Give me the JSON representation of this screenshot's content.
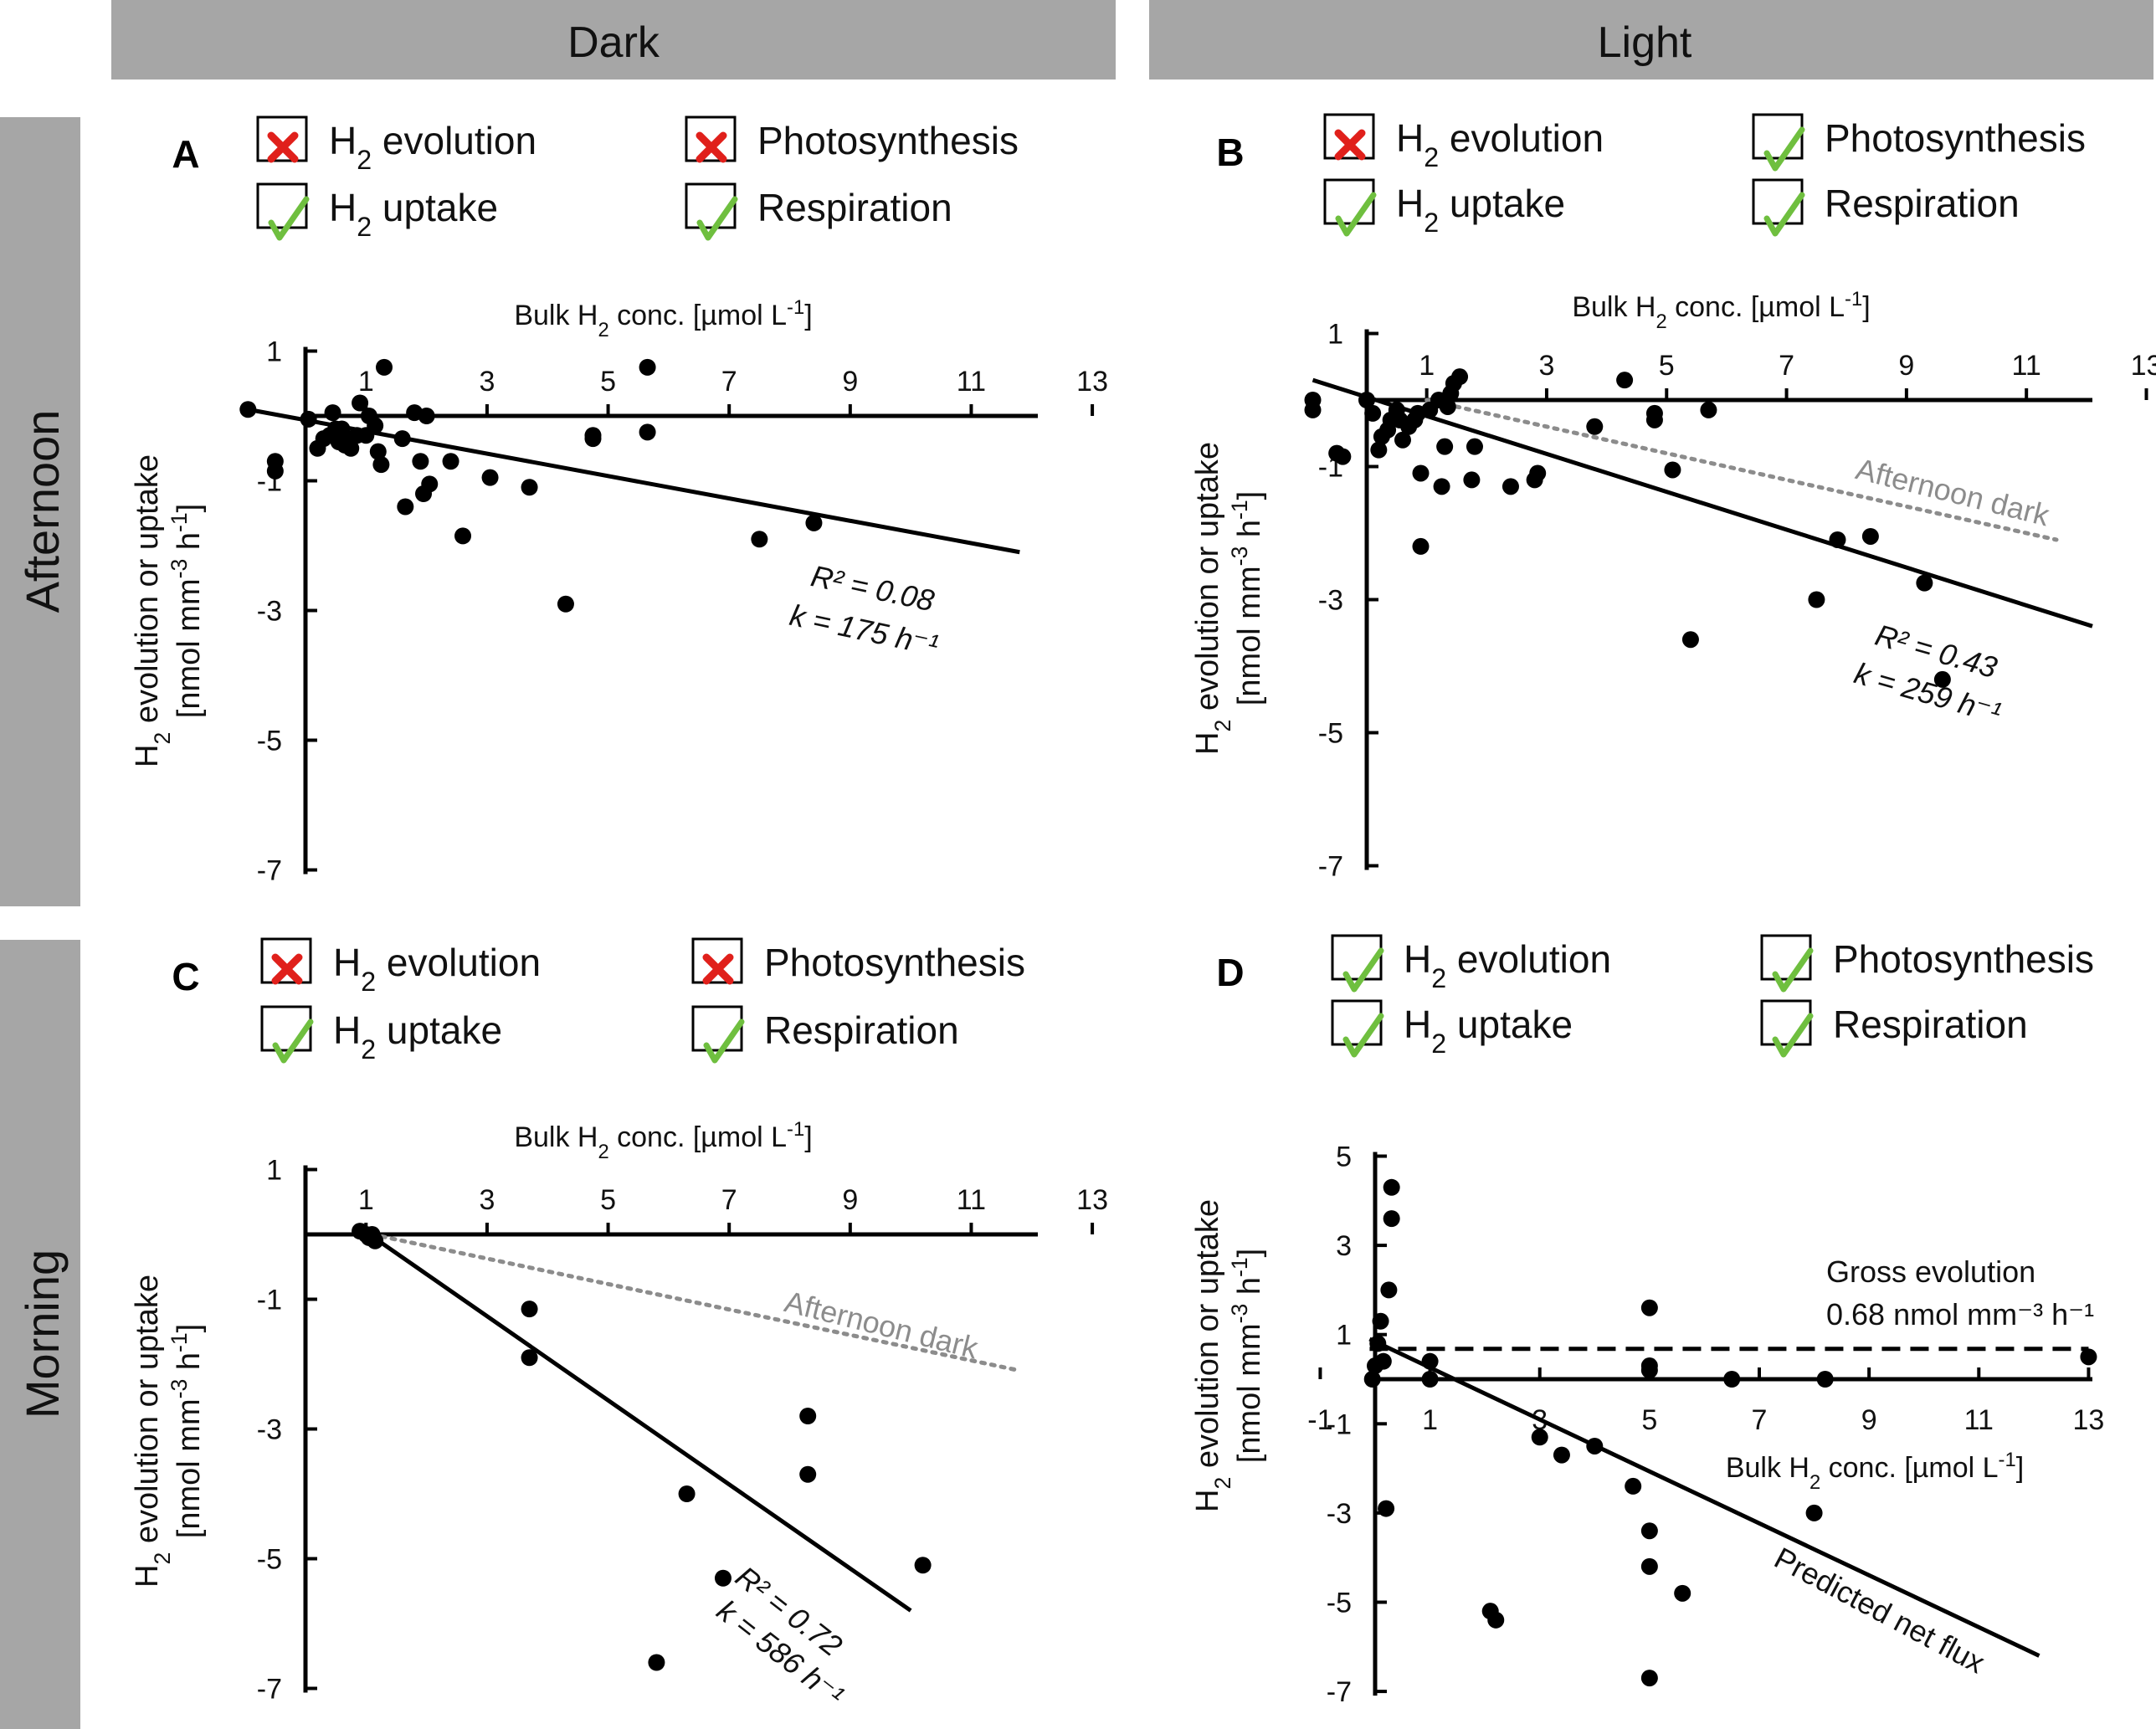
{
  "figure": {
    "col_headers": [
      "Dark",
      "Light"
    ],
    "row_headers": [
      "Afternoon",
      "Morning"
    ]
  },
  "legend_symbols": {
    "check": "green check mark",
    "cross": "red cross mark"
  },
  "colors": {
    "check": "#6fbf3f",
    "cross": "#e0201b",
    "header_bg": "#a6a6a6",
    "dotted": "#8c8c8c"
  },
  "chart_data": [
    {
      "panel": "A",
      "type": "scatter",
      "xlabel_parts": [
        "Bulk H",
        "2",
        " conc. [µmol L",
        "-1",
        "]"
      ],
      "ylabel_parts": [
        "H",
        "2",
        " evolution or uptake"
      ],
      "ylabel2_parts": [
        "[nmol mm",
        "-3",
        " h",
        "-1",
        "]"
      ],
      "xticks": [
        1,
        3,
        5,
        7,
        9,
        11,
        13
      ],
      "yticks": [
        1,
        -1,
        -3,
        -5,
        -7
      ],
      "xlim": [
        0,
        13
      ],
      "ylim": [
        -7,
        1
      ],
      "legend": [
        {
          "label": "H",
          "sub": "2",
          "rest": " evolution",
          "status": "cross"
        },
        {
          "label": "Photosynthesis",
          "sub": "",
          "rest": "",
          "status": "cross"
        },
        {
          "label": "H",
          "sub": "2",
          "rest": " uptake",
          "status": "check"
        },
        {
          "label": "Respiration",
          "sub": "",
          "rest": "",
          "status": "check"
        }
      ],
      "points": [
        [
          -0.95,
          0.1
        ],
        [
          -0.5,
          -0.7
        ],
        [
          -0.5,
          -0.85
        ],
        [
          0.05,
          -0.05
        ],
        [
          0.2,
          -0.5
        ],
        [
          0.3,
          -0.35
        ],
        [
          0.4,
          -0.3
        ],
        [
          0.45,
          0.05
        ],
        [
          0.5,
          -0.2
        ],
        [
          0.55,
          -0.4
        ],
        [
          0.6,
          -0.2
        ],
        [
          0.65,
          -0.45
        ],
        [
          0.7,
          -0.35
        ],
        [
          0.75,
          -0.5
        ],
        [
          0.85,
          -0.3
        ],
        [
          0.9,
          0.2
        ],
        [
          1.0,
          -0.3
        ],
        [
          1.05,
          0
        ],
        [
          1.15,
          -0.15
        ],
        [
          1.2,
          -0.55
        ],
        [
          1.25,
          -0.75
        ],
        [
          1.3,
          0.75
        ],
        [
          1.6,
          -0.35
        ],
        [
          1.65,
          -1.4
        ],
        [
          1.8,
          0.05
        ],
        [
          1.9,
          -0.7
        ],
        [
          1.95,
          -1.2
        ],
        [
          2.0,
          0
        ],
        [
          2.05,
          -1.05
        ],
        [
          2.4,
          -0.7
        ],
        [
          2.6,
          -1.85
        ],
        [
          3.05,
          -0.95
        ],
        [
          3.7,
          -1.1
        ],
        [
          4.3,
          -2.9
        ],
        [
          4.75,
          -0.3
        ],
        [
          4.75,
          -0.35
        ],
        [
          5.65,
          0.75
        ],
        [
          5.65,
          -0.25
        ],
        [
          7.5,
          -1.9
        ],
        [
          8.4,
          -1.65
        ]
      ],
      "fit_line": {
        "x": [
          -0.95,
          11.8
        ],
        "y": [
          0.1,
          -2.1
        ],
        "style": "solid"
      },
      "annotation": [
        "R² = 0.08",
        "k = 175 h⁻¹"
      ]
    },
    {
      "panel": "B",
      "type": "scatter",
      "xlabel_parts": [
        "Bulk H",
        "2",
        " conc. [µmol L",
        "-1",
        "]"
      ],
      "ylabel_parts": [
        "H",
        "2",
        " evolution or uptake"
      ],
      "ylabel2_parts": [
        "[nmol mm",
        "-3",
        " h",
        "-1",
        "]"
      ],
      "xticks": [
        1,
        3,
        5,
        7,
        9,
        11,
        13
      ],
      "yticks": [
        1,
        -1,
        -3,
        -5,
        -7
      ],
      "xlim": [
        0,
        13
      ],
      "ylim": [
        -7,
        1
      ],
      "legend": [
        {
          "label": "H",
          "sub": "2",
          "rest": " evolution",
          "status": "cross"
        },
        {
          "label": "Photosynthesis",
          "sub": "",
          "rest": "",
          "status": "check"
        },
        {
          "label": "H",
          "sub": "2",
          "rest": " uptake",
          "status": "check"
        },
        {
          "label": "Respiration",
          "sub": "",
          "rest": "",
          "status": "check"
        }
      ],
      "points": [
        [
          -0.9,
          0
        ],
        [
          -0.9,
          -0.15
        ],
        [
          -0.5,
          -0.8
        ],
        [
          -0.4,
          -0.85
        ],
        [
          0,
          0
        ],
        [
          0.1,
          -0.2
        ],
        [
          0.2,
          -0.75
        ],
        [
          0.25,
          -0.55
        ],
        [
          0.35,
          -0.45
        ],
        [
          0.4,
          -0.3
        ],
        [
          0.5,
          -0.15
        ],
        [
          0.55,
          -0.3
        ],
        [
          0.6,
          -0.6
        ],
        [
          0.7,
          -0.4
        ],
        [
          0.8,
          -0.3
        ],
        [
          0.85,
          -0.2
        ],
        [
          0.9,
          -1.1
        ],
        [
          0.9,
          -2.2
        ],
        [
          1.05,
          -0.15
        ],
        [
          1.2,
          0
        ],
        [
          1.25,
          -1.3
        ],
        [
          1.3,
          -0.7
        ],
        [
          1.35,
          -0.1
        ],
        [
          1.4,
          0.1
        ],
        [
          1.45,
          0.25
        ],
        [
          1.55,
          0.35
        ],
        [
          1.75,
          -1.2
        ],
        [
          1.8,
          -0.7
        ],
        [
          2.4,
          -1.3
        ],
        [
          2.8,
          -1.2
        ],
        [
          2.85,
          -1.1
        ],
        [
          3.8,
          -0.4
        ],
        [
          4.3,
          0.3
        ],
        [
          4.8,
          -0.2
        ],
        [
          4.8,
          -0.3
        ],
        [
          5.7,
          -0.15
        ],
        [
          5.1,
          -1.05
        ],
        [
          5.4,
          -3.6
        ],
        [
          7.5,
          -3
        ],
        [
          7.85,
          -2.1
        ],
        [
          8.4,
          -2.05
        ],
        [
          9.3,
          -2.75
        ],
        [
          9.6,
          -4.2
        ]
      ],
      "fit_line": {
        "x": [
          -0.9,
          12.1
        ],
        "y": [
          0.3,
          -3.4
        ],
        "style": "solid"
      },
      "ref_line": {
        "x": [
          1.0,
          11.5
        ],
        "y": [
          0,
          -2.1
        ],
        "style": "dotted",
        "label": "Afternoon dark"
      },
      "annotation": [
        "R² = 0.43",
        "k = 259 h⁻¹"
      ]
    },
    {
      "panel": "C",
      "type": "scatter",
      "xlabel_parts": [
        "Bulk H",
        "2",
        " conc. [µmol L",
        "-1",
        "]"
      ],
      "ylabel_parts": [
        "H",
        "2",
        " evolution or uptake"
      ],
      "ylabel2_parts": [
        "[nmol mm",
        "-3",
        " h",
        "-1",
        "]"
      ],
      "xticks": [
        1,
        3,
        5,
        7,
        9,
        11,
        13
      ],
      "yticks": [
        1,
        -1,
        -3,
        -5,
        -7
      ],
      "xlim": [
        0,
        13
      ],
      "ylim": [
        -7,
        1
      ],
      "legend": [
        {
          "label": "H",
          "sub": "2",
          "rest": " evolution",
          "status": "cross"
        },
        {
          "label": "Photosynthesis",
          "sub": "",
          "rest": "",
          "status": "cross"
        },
        {
          "label": "H",
          "sub": "2",
          "rest": " uptake",
          "status": "check"
        },
        {
          "label": "Respiration",
          "sub": "",
          "rest": "",
          "status": "check"
        }
      ],
      "points": [
        [
          0.9,
          0.05
        ],
        [
          1.0,
          0
        ],
        [
          1.05,
          -0.05
        ],
        [
          1.1,
          0
        ],
        [
          1.15,
          -0.1
        ],
        [
          3.7,
          -1.15
        ],
        [
          3.7,
          -1.9
        ],
        [
          5.8,
          -6.6
        ],
        [
          6.3,
          -4
        ],
        [
          6.9,
          -5.3
        ],
        [
          8.3,
          -2.8
        ],
        [
          8.3,
          -3.7
        ],
        [
          10.2,
          -5.1
        ]
      ],
      "fit_line": {
        "x": [
          0.9,
          10.0
        ],
        "y": [
          0.1,
          -5.8
        ],
        "style": "solid"
      },
      "ref_line": {
        "x": [
          1.1,
          11.8
        ],
        "y": [
          0,
          -2.1
        ],
        "style": "dotted",
        "label": "Afternoon dark"
      },
      "annotation": [
        "R² = 0.72",
        "k = 586 h⁻¹"
      ]
    },
    {
      "panel": "D",
      "type": "scatter",
      "xlabel_parts": [
        "Bulk H",
        "2",
        " conc. [µmol L",
        "-1",
        "]"
      ],
      "ylabel_parts": [
        "H",
        "2",
        " evolution or uptake"
      ],
      "ylabel2_parts": [
        "[nmol mm",
        "-3",
        " h",
        "-1",
        "]"
      ],
      "xticks": [
        -1,
        1,
        3,
        5,
        7,
        9,
        11,
        13
      ],
      "yticks": [
        5,
        3,
        1,
        -1,
        -3,
        -5,
        -7
      ],
      "xlim": [
        -1,
        13
      ],
      "ylim": [
        -7,
        5
      ],
      "legend": [
        {
          "label": "H",
          "sub": "2",
          "rest": " evolution",
          "status": "check"
        },
        {
          "label": "Photosynthesis",
          "sub": "",
          "rest": "",
          "status": "check"
        },
        {
          "label": "H",
          "sub": "2",
          "rest": " uptake",
          "status": "check"
        },
        {
          "label": "Respiration",
          "sub": "",
          "rest": "",
          "status": "check"
        }
      ],
      "points": [
        [
          -0.05,
          0
        ],
        [
          0,
          0.3
        ],
        [
          0.05,
          0.8
        ],
        [
          0.1,
          1.3
        ],
        [
          0.15,
          0.4
        ],
        [
          0.2,
          -2.9
        ],
        [
          0.25,
          2
        ],
        [
          0.3,
          3.6
        ],
        [
          0.3,
          4.3
        ],
        [
          1.0,
          0.4
        ],
        [
          1.0,
          0
        ],
        [
          2.1,
          -5.2
        ],
        [
          2.2,
          -5.4
        ],
        [
          3.0,
          -1.3
        ],
        [
          3.4,
          -1.7
        ],
        [
          4.0,
          -1.5
        ],
        [
          4.7,
          -2.4
        ],
        [
          5.0,
          1.6
        ],
        [
          5.0,
          0.3
        ],
        [
          5.0,
          0.2
        ],
        [
          5.0,
          -3.4
        ],
        [
          5.0,
          -4.2
        ],
        [
          5.0,
          -6.7
        ],
        [
          5.6,
          -4.8
        ],
        [
          6.5,
          0
        ],
        [
          8.0,
          -3
        ],
        [
          8.2,
          0
        ],
        [
          13.0,
          0.5
        ]
      ],
      "fit_line": {
        "x": [
          -0.1,
          12.1
        ],
        "y": [
          0.9,
          -6.2
        ],
        "style": "solid"
      },
      "gross_line": {
        "x": [
          -0.1,
          13.0
        ],
        "y": [
          0.68,
          0.68
        ],
        "style": "dashed"
      },
      "annotation_gross": [
        "Gross evolution",
        "0.68 nmol mm⁻³ h⁻¹"
      ],
      "annotation": [
        "Predicted net flux"
      ]
    }
  ]
}
